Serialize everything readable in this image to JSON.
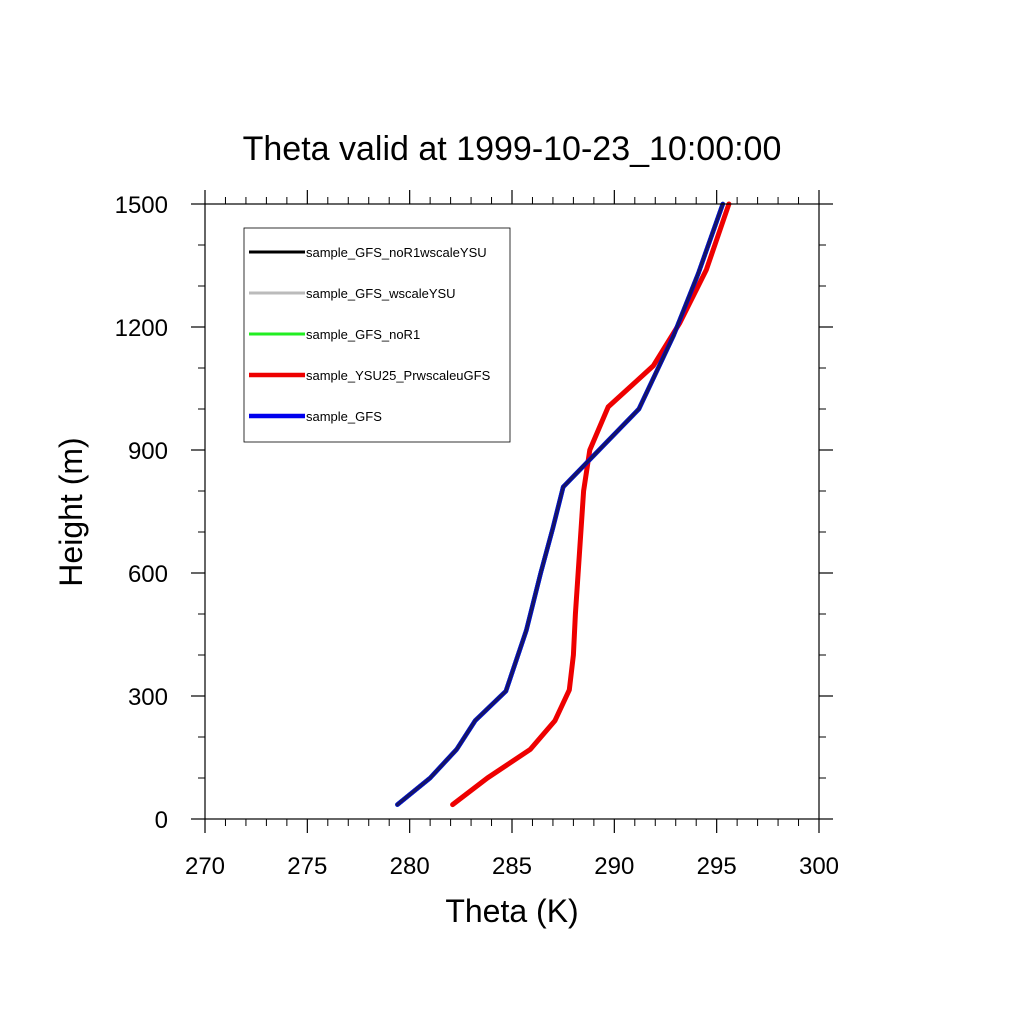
{
  "chart_data": {
    "type": "line",
    "title": "Theta valid at 1999-10-23_10:00:00",
    "xlabel": "Theta (K)",
    "ylabel": "Height (m)",
    "xlim": [
      270,
      300
    ],
    "ylim": [
      0,
      1500
    ],
    "x_ticks": [
      270,
      275,
      280,
      285,
      290,
      295,
      300
    ],
    "x_tick_labels": [
      "270",
      "275",
      "280",
      "285",
      "290",
      "295",
      "300"
    ],
    "y_ticks": [
      0,
      300,
      600,
      900,
      1200,
      1500
    ],
    "y_tick_labels": [
      "0",
      "300",
      "600",
      "900",
      "1200",
      "1500"
    ],
    "x_minor_step": 1,
    "y_minor_step": 100,
    "grid": false,
    "legend_position": "top-left",
    "series": [
      {
        "name": "sample_GFS_noR1wscaleYSU",
        "color": "#000000",
        "x": [
          279.4,
          281.0,
          282.3,
          283.2,
          284.7,
          285.7,
          286.4,
          287.0,
          287.5,
          291.2,
          292.9,
          294.1,
          295.3
        ],
        "y": [
          35,
          100,
          170,
          240,
          312,
          460,
          600,
          710,
          810,
          1000,
          1180,
          1330,
          1500
        ]
      },
      {
        "name": "sample_GFS_wscaleYSU",
        "color": "#bbbbbb",
        "x": [
          279.4,
          281.0,
          282.3,
          283.2,
          284.7,
          285.7,
          286.4,
          287.0,
          287.5,
          291.2,
          292.9,
          294.1,
          295.3
        ],
        "y": [
          35,
          100,
          170,
          240,
          312,
          460,
          600,
          710,
          810,
          1000,
          1180,
          1330,
          1500
        ]
      },
      {
        "name": "sample_GFS_noR1",
        "color": "#22ee22",
        "x": [
          279.4,
          281.0,
          282.3,
          283.2,
          284.7,
          285.7,
          286.4,
          287.0,
          287.5,
          291.2,
          292.9,
          294.1,
          295.3
        ],
        "y": [
          35,
          100,
          170,
          240,
          312,
          460,
          600,
          710,
          810,
          1000,
          1180,
          1330,
          1500
        ]
      },
      {
        "name": "sample_YSU25_PrwscaleuGFS",
        "color": "#ee0000",
        "x": [
          282.1,
          283.8,
          285.9,
          287.1,
          287.8,
          288.0,
          288.1,
          288.3,
          288.5,
          288.8,
          289.7,
          291.9,
          293.2,
          294.5,
          295.6
        ],
        "y": [
          35,
          100,
          170,
          240,
          315,
          400,
          500,
          650,
          800,
          900,
          1005,
          1105,
          1210,
          1340,
          1500
        ]
      },
      {
        "name": "sample_GFS",
        "color": "#0000ee",
        "x": [
          279.4,
          281.0,
          282.3,
          283.2,
          284.7,
          285.7,
          286.4,
          287.0,
          287.5,
          291.2,
          292.9,
          294.1,
          295.3
        ],
        "y": [
          35,
          100,
          170,
          240,
          312,
          460,
          600,
          710,
          810,
          1000,
          1180,
          1330,
          1500
        ]
      }
    ]
  }
}
